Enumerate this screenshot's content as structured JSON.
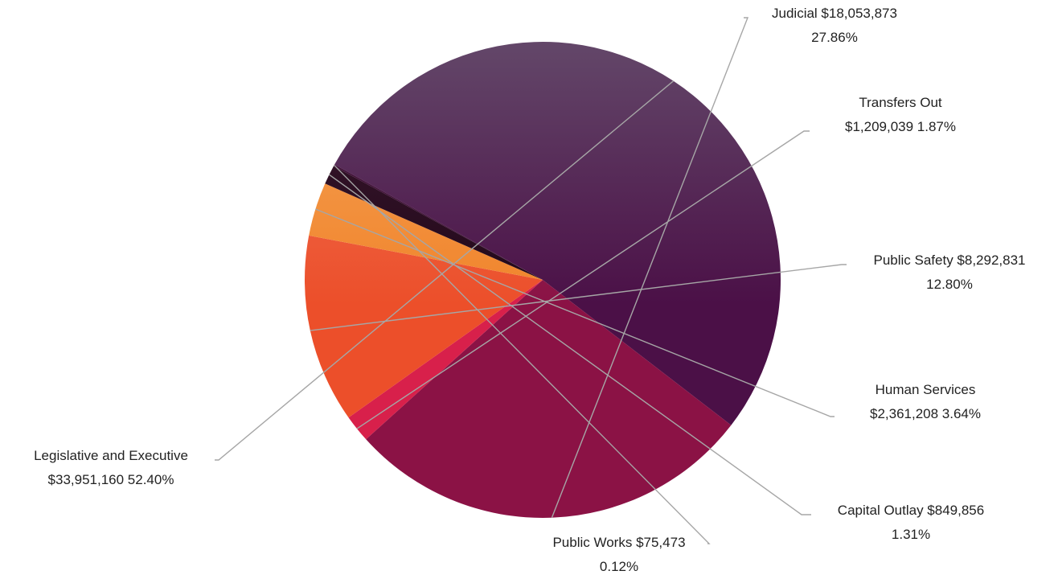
{
  "chart_data": {
    "type": "pie",
    "title": "",
    "legend": "none",
    "slices": [
      {
        "label": "Legislative and Executive",
        "value": 33951160,
        "value_label": "$33,951,160",
        "percent_label": "52.40%",
        "color": "#4b1047",
        "color_light": "#634769"
      },
      {
        "label": "Judicial",
        "value": 18053873,
        "value_label": "$18,053,873",
        "percent_label": "27.86%",
        "color": "#8b1245",
        "color_light": "#8b3a5c"
      },
      {
        "label": "Transfers Out",
        "value": 1209039,
        "value_label": "$1,209,039",
        "percent_label": "1.87%",
        "color": "#d8204b",
        "color_light": "#de3d62"
      },
      {
        "label": "Public Safety",
        "value": 8292831,
        "value_label": "$8,292,831",
        "percent_label": "12.80%",
        "color": "#ec4f2a",
        "color_light": "#f0775e"
      },
      {
        "label": "Human Services",
        "value": 2361208,
        "value_label": "$2,361,208",
        "percent_label": "3.64%",
        "color": "#f0842b",
        "color_light": "#f6a45a"
      },
      {
        "label": "Capital Outlay",
        "value": 849856,
        "value_label": "$849,856",
        "percent_label": "1.31%",
        "color": "#220819",
        "color_light": "#3d1a32"
      },
      {
        "label": "Public Works",
        "value": 75473,
        "value_label": "$75,473",
        "percent_label": "0.12%",
        "color": "#3b0d33",
        "color_light": "#4a1a42"
      }
    ],
    "data_labels": [
      {
        "line1": "Judicial  $18,053,873",
        "line2": "27.86%"
      },
      {
        "line1": "Transfers Out",
        "line2": "$1,209,039  1.87%"
      },
      {
        "line1": "Public Safety  $8,292,831",
        "line2": "12.80%"
      },
      {
        "line1": "Human Services",
        "line2": "$2,361,208  3.64%"
      },
      {
        "line1": "Capital Outlay  $849,856",
        "line2": "1.31%"
      },
      {
        "line1": "Public Works  $75,473",
        "line2": "0.12%"
      },
      {
        "line1": "Legislative and Executive",
        "line2": "$33,951,160  52.40%"
      }
    ]
  }
}
